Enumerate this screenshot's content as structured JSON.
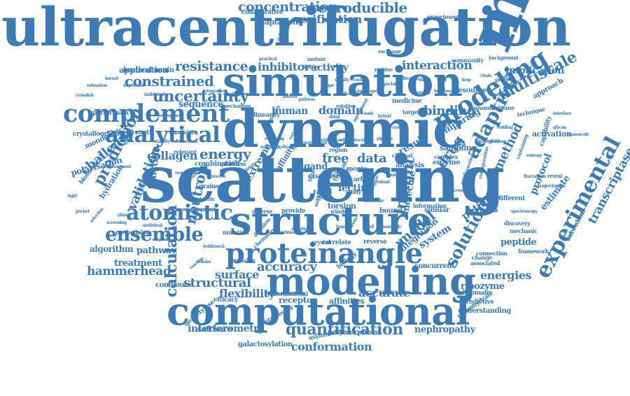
{
  "cloud": {
    "color": "#3e7bb2",
    "background": "#ffffff",
    "words": [
      "ultracentrifugation",
      "molecular",
      "scattering",
      "dynamic",
      "simulation",
      "structure",
      "computational",
      "modelling",
      "proteinangle",
      "complement",
      "modeling",
      "analytical",
      "atomistic",
      "ensemble",
      "experimental",
      "calculation",
      "adaptive",
      "solution",
      "quantification",
      "concentration",
      "reproducible",
      "verification",
      "uncertainty",
      "constrained",
      "resistance",
      "inhibitor",
      "interaction",
      "implication",
      "application",
      "activity",
      "multiscale",
      "binding",
      "domain",
      "human",
      "energy",
      "collagen",
      "drug",
      "method",
      "free",
      "data",
      "result",
      "prediction",
      "validation",
      "challenge",
      "function",
      "neutron",
      "accuracy",
      "surface",
      "structural",
      "flexibility",
      "interferometry",
      "conformation",
      "nephropathy",
      "hammerhead",
      "treatment",
      "pathway",
      "algorithm",
      "energies",
      "system",
      "patient",
      "model",
      "ribozyme",
      "peptide",
      "transcriptase",
      "estimate",
      "protocol",
      "activation",
      "accurate",
      "receptor",
      "affinities",
      "insight",
      "molecule",
      "lectin",
      "torsion",
      "ligand",
      "curve",
      "monte",
      "carlo",
      "sequence",
      "performance",
      "crystallography",
      "monomeric",
      "polarisation",
      "hydration",
      "software",
      "polymorphism",
      "galactosylation",
      "deacetylase",
      "compound",
      "bromodomain",
      "collaborative",
      "adaptation",
      "experiment",
      "medicine",
      "target",
      "resource",
      "approach",
      "mechanism",
      "linearity",
      "position",
      "combination",
      "platform",
      "strength",
      "candidate",
      "relevant",
      "available",
      "biomedical",
      "methodology",
      "measurement",
      "mutation",
      "decision",
      "extreme",
      "affinity",
      "provide",
      "diverse",
      "window",
      "bound",
      "similar",
      "precise",
      "different",
      "discovery",
      "mechanic",
      "framework",
      "execution",
      "understanding",
      "subdomain",
      "predictive",
      "carbohydrate",
      "connection",
      "concurrent",
      "integration",
      "reverse",
      "correlate",
      "reliable",
      "chemistry",
      "biology",
      "crystal",
      "efficacy",
      "conformational",
      "asymmetric",
      "introducing",
      "change",
      "associated",
      "exchange",
      "community",
      "background",
      "transmembrane",
      "technique",
      "comparing",
      "sampling",
      "complex",
      "enzyme",
      "analysis",
      "clinical",
      "region",
      "coarse",
      "rapid",
      "scale",
      "time",
      "triple",
      "typical",
      "grained",
      "study",
      "support",
      "dual",
      "rotation",
      "agreement",
      "residue",
      "mutant",
      "feature",
      "sialic",
      "practical",
      "development",
      "important",
      "individual",
      "identification",
      "capability",
      "reveal",
      "trajectories",
      "configurational",
      "configuration",
      "motion",
      "information",
      "sedimentation",
      "containing",
      "biological",
      "requirement",
      "determined",
      "specific",
      "process",
      "regulatory",
      "potential",
      "reliability",
      "exploring",
      "hydrogen",
      "variable",
      "environment",
      "efficient",
      "scalable",
      "pipeline",
      "timescale",
      "regime",
      "robust",
      "context",
      "assembly",
      "fibril",
      "kinetic",
      "heparin",
      "membrane",
      "estimation",
      "bottleneck",
      "cellular",
      "reaction",
      "oligomer",
      "statistical",
      "phase",
      "screening",
      "selection",
      "pocket",
      "rigid",
      "fragment",
      "refinement",
      "stability",
      "mode",
      "microscopy",
      "electron",
      "spectroscopy",
      "fluctuation",
      "entropy",
      "imaging",
      "benchmark",
      "landscape",
      "allosteric",
      "pathway",
      "solvent",
      "docking",
      "integrative",
      "kernel",
      "relaxation",
      "crosslink",
      "interface",
      "glycan",
      "nanoscale",
      "polymer",
      "folding",
      "cryo",
      "hybrid",
      "ionic",
      "contact",
      "density",
      "shape",
      "packing",
      "vibration",
      "dimer",
      "helix",
      "loop",
      "chain",
      "ring",
      "bond",
      "sugar",
      "protein",
      "charge",
      "force",
      "field",
      "gene",
      "atom",
      "site",
      "size"
    ]
  }
}
